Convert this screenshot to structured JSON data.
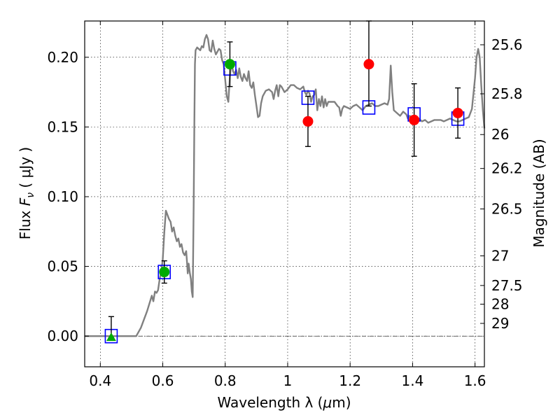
{
  "chart_data": {
    "type": "scatter",
    "xlabel": "Wavelength  λ (μm)",
    "ylabel": "Flux  F_ν  ( μJy )",
    "ylabel_parts": {
      "pre": "Flux  ",
      "sym": "F",
      "sub": "ν",
      "post": "  ( μJy )"
    },
    "xlabel_parts": {
      "pre": "Wavelength  λ (",
      "mu": "μ",
      "post": "m)"
    },
    "right_ylabel": "Magnitude (AB)",
    "xlim": [
      0.35,
      1.63
    ],
    "ylim": [
      -0.022,
      0.226
    ],
    "grid": true,
    "x_ticks": [
      {
        "v": 0.4,
        "label": "0.4"
      },
      {
        "v": 0.6,
        "label": "0.6"
      },
      {
        "v": 0.8,
        "label": "0.8"
      },
      {
        "v": 1.0,
        "label": "1"
      },
      {
        "v": 1.2,
        "label": "1.2"
      },
      {
        "v": 1.4,
        "label": "1.4"
      },
      {
        "v": 1.6,
        "label": "1.6"
      }
    ],
    "y_ticks": [
      {
        "v": 0.0,
        "label": "0.00"
      },
      {
        "v": 0.05,
        "label": "0.05"
      },
      {
        "v": 0.1,
        "label": "0.10"
      },
      {
        "v": 0.15,
        "label": "0.15"
      },
      {
        "v": 0.2,
        "label": "0.20"
      }
    ],
    "magnitude_ticks": [
      {
        "v": 25.6,
        "label": "25.6"
      },
      {
        "v": 25.8,
        "label": "25.8"
      },
      {
        "v": 26.0,
        "label": "26"
      },
      {
        "v": 26.2,
        "label": "26.2"
      },
      {
        "v": 26.5,
        "label": "26.5"
      },
      {
        "v": 27.0,
        "label": "27"
      },
      {
        "v": 27.5,
        "label": "27.5"
      },
      {
        "v": 28.0,
        "label": "28"
      },
      {
        "v": 29.0,
        "label": "29"
      }
    ],
    "series": [
      {
        "kind": "sed_model_line",
        "color": "#808080",
        "points": [
          [
            0.35,
            0.0
          ],
          [
            0.515,
            0.0
          ],
          [
            0.53,
            0.006
          ],
          [
            0.55,
            0.018
          ],
          [
            0.565,
            0.029
          ],
          [
            0.57,
            0.025
          ],
          [
            0.575,
            0.032
          ],
          [
            0.58,
            0.031
          ],
          [
            0.585,
            0.033
          ],
          [
            0.59,
            0.041
          ],
          [
            0.595,
            0.046
          ],
          [
            0.6,
            0.055
          ],
          [
            0.605,
            0.075
          ],
          [
            0.61,
            0.09
          ],
          [
            0.615,
            0.087
          ],
          [
            0.62,
            0.084
          ],
          [
            0.625,
            0.082
          ],
          [
            0.63,
            0.075
          ],
          [
            0.635,
            0.078
          ],
          [
            0.64,
            0.072
          ],
          [
            0.645,
            0.068
          ],
          [
            0.65,
            0.07
          ],
          [
            0.655,
            0.064
          ],
          [
            0.66,
            0.066
          ],
          [
            0.665,
            0.06
          ],
          [
            0.67,
            0.058
          ],
          [
            0.675,
            0.061
          ],
          [
            0.678,
            0.052
          ],
          [
            0.68,
            0.045
          ],
          [
            0.683,
            0.052
          ],
          [
            0.687,
            0.045
          ],
          [
            0.69,
            0.041
          ],
          [
            0.693,
            0.032
          ],
          [
            0.696,
            0.028
          ],
          [
            0.699,
            0.095
          ],
          [
            0.701,
            0.15
          ],
          [
            0.703,
            0.195
          ],
          [
            0.705,
            0.205
          ],
          [
            0.71,
            0.207
          ],
          [
            0.715,
            0.206
          ],
          [
            0.72,
            0.205
          ],
          [
            0.725,
            0.208
          ],
          [
            0.73,
            0.207
          ],
          [
            0.735,
            0.213
          ],
          [
            0.74,
            0.216
          ],
          [
            0.745,
            0.213
          ],
          [
            0.75,
            0.205
          ],
          [
            0.755,
            0.204
          ],
          [
            0.76,
            0.212
          ],
          [
            0.765,
            0.206
          ],
          [
            0.77,
            0.202
          ],
          [
            0.775,
            0.204
          ],
          [
            0.78,
            0.206
          ],
          [
            0.785,
            0.205
          ],
          [
            0.79,
            0.198
          ],
          [
            0.795,
            0.195
          ],
          [
            0.8,
            0.184
          ],
          [
            0.805,
            0.172
          ],
          [
            0.81,
            0.168
          ],
          [
            0.815,
            0.186
          ],
          [
            0.82,
            0.197
          ],
          [
            0.825,
            0.19
          ],
          [
            0.83,
            0.188
          ],
          [
            0.835,
            0.191
          ],
          [
            0.84,
            0.185
          ],
          [
            0.845,
            0.192
          ],
          [
            0.85,
            0.186
          ],
          [
            0.855,
            0.183
          ],
          [
            0.86,
            0.188
          ],
          [
            0.865,
            0.185
          ],
          [
            0.87,
            0.183
          ],
          [
            0.875,
            0.19
          ],
          [
            0.88,
            0.18
          ],
          [
            0.885,
            0.178
          ],
          [
            0.89,
            0.182
          ],
          [
            0.895,
            0.173
          ],
          [
            0.9,
            0.165
          ],
          [
            0.905,
            0.157
          ],
          [
            0.91,
            0.158
          ],
          [
            0.915,
            0.167
          ],
          [
            0.92,
            0.172
          ],
          [
            0.93,
            0.176
          ],
          [
            0.94,
            0.177
          ],
          [
            0.95,
            0.175
          ],
          [
            0.955,
            0.17
          ],
          [
            0.96,
            0.176
          ],
          [
            0.965,
            0.18
          ],
          [
            0.97,
            0.172
          ],
          [
            0.975,
            0.18
          ],
          [
            0.98,
            0.179
          ],
          [
            0.99,
            0.175
          ],
          [
            1.0,
            0.177
          ],
          [
            1.01,
            0.18
          ],
          [
            1.02,
            0.18
          ],
          [
            1.03,
            0.178
          ],
          [
            1.04,
            0.177
          ],
          [
            1.05,
            0.179
          ],
          [
            1.055,
            0.175
          ],
          [
            1.06,
            0.173
          ],
          [
            1.065,
            0.176
          ],
          [
            1.07,
            0.174
          ],
          [
            1.075,
            0.168
          ],
          [
            1.08,
            0.172
          ],
          [
            1.085,
            0.173
          ],
          [
            1.09,
            0.177
          ],
          [
            1.095,
            0.162
          ],
          [
            1.1,
            0.17
          ],
          [
            1.105,
            0.165
          ],
          [
            1.11,
            0.172
          ],
          [
            1.115,
            0.164
          ],
          [
            1.12,
            0.17
          ],
          [
            1.125,
            0.165
          ],
          [
            1.13,
            0.168
          ],
          [
            1.14,
            0.168
          ],
          [
            1.15,
            0.168
          ],
          [
            1.16,
            0.165
          ],
          [
            1.165,
            0.164
          ],
          [
            1.17,
            0.158
          ],
          [
            1.175,
            0.163
          ],
          [
            1.18,
            0.165
          ],
          [
            1.19,
            0.164
          ],
          [
            1.2,
            0.163
          ],
          [
            1.21,
            0.165
          ],
          [
            1.22,
            0.166
          ],
          [
            1.23,
            0.164
          ],
          [
            1.24,
            0.162
          ],
          [
            1.25,
            0.165
          ],
          [
            1.26,
            0.166
          ],
          [
            1.27,
            0.167
          ],
          [
            1.28,
            0.165
          ],
          [
            1.29,
            0.165
          ],
          [
            1.3,
            0.166
          ],
          [
            1.31,
            0.167
          ],
          [
            1.32,
            0.166
          ],
          [
            1.325,
            0.17
          ],
          [
            1.33,
            0.194
          ],
          [
            1.335,
            0.175
          ],
          [
            1.34,
            0.162
          ],
          [
            1.35,
            0.16
          ],
          [
            1.36,
            0.158
          ],
          [
            1.37,
            0.161
          ],
          [
            1.38,
            0.159
          ],
          [
            1.385,
            0.156
          ],
          [
            1.39,
            0.158
          ],
          [
            1.4,
            0.157
          ],
          [
            1.41,
            0.157
          ],
          [
            1.42,
            0.156
          ],
          [
            1.43,
            0.154
          ],
          [
            1.44,
            0.155
          ],
          [
            1.45,
            0.153
          ],
          [
            1.46,
            0.154
          ],
          [
            1.47,
            0.155
          ],
          [
            1.48,
            0.155
          ],
          [
            1.49,
            0.155
          ],
          [
            1.5,
            0.154
          ],
          [
            1.51,
            0.155
          ],
          [
            1.52,
            0.156
          ],
          [
            1.53,
            0.155
          ],
          [
            1.54,
            0.154
          ],
          [
            1.55,
            0.154
          ],
          [
            1.56,
            0.155
          ],
          [
            1.57,
            0.156
          ],
          [
            1.58,
            0.157
          ],
          [
            1.59,
            0.163
          ],
          [
            1.6,
            0.185
          ],
          [
            1.605,
            0.2
          ],
          [
            1.61,
            0.206
          ],
          [
            1.615,
            0.2
          ],
          [
            1.62,
            0.18
          ],
          [
            1.625,
            0.162
          ],
          [
            1.63,
            0.149
          ]
        ]
      },
      {
        "kind": "model_photometry_squares",
        "color": "#0000ff",
        "points": [
          [
            0.435,
            0.0
          ],
          [
            0.605,
            0.046
          ],
          [
            0.815,
            0.192
          ],
          [
            1.065,
            0.171
          ],
          [
            1.26,
            0.164
          ],
          [
            1.405,
            0.159
          ],
          [
            1.545,
            0.156
          ]
        ]
      },
      {
        "kind": "observed_green_circles",
        "color": "#00aa00",
        "points": [
          {
            "x": 0.605,
            "y": 0.046,
            "err": 0.008
          },
          {
            "x": 0.815,
            "y": 0.195,
            "err": 0.016
          }
        ]
      },
      {
        "kind": "observed_green_triangle",
        "color": "#00aa00",
        "points": [
          {
            "x": 0.435,
            "y": -0.001,
            "err_up": 0.015
          }
        ]
      },
      {
        "kind": "observed_red_circles",
        "color": "#ff0000",
        "points": [
          {
            "x": 1.065,
            "y": 0.154,
            "err": 0.018
          },
          {
            "x": 1.26,
            "y": 0.195,
            "err_low": 0.03,
            "err_up": 0.035
          },
          {
            "x": 1.405,
            "y": 0.155,
            "err": 0.026
          },
          {
            "x": 1.545,
            "y": 0.16,
            "err": 0.018
          }
        ]
      }
    ]
  }
}
